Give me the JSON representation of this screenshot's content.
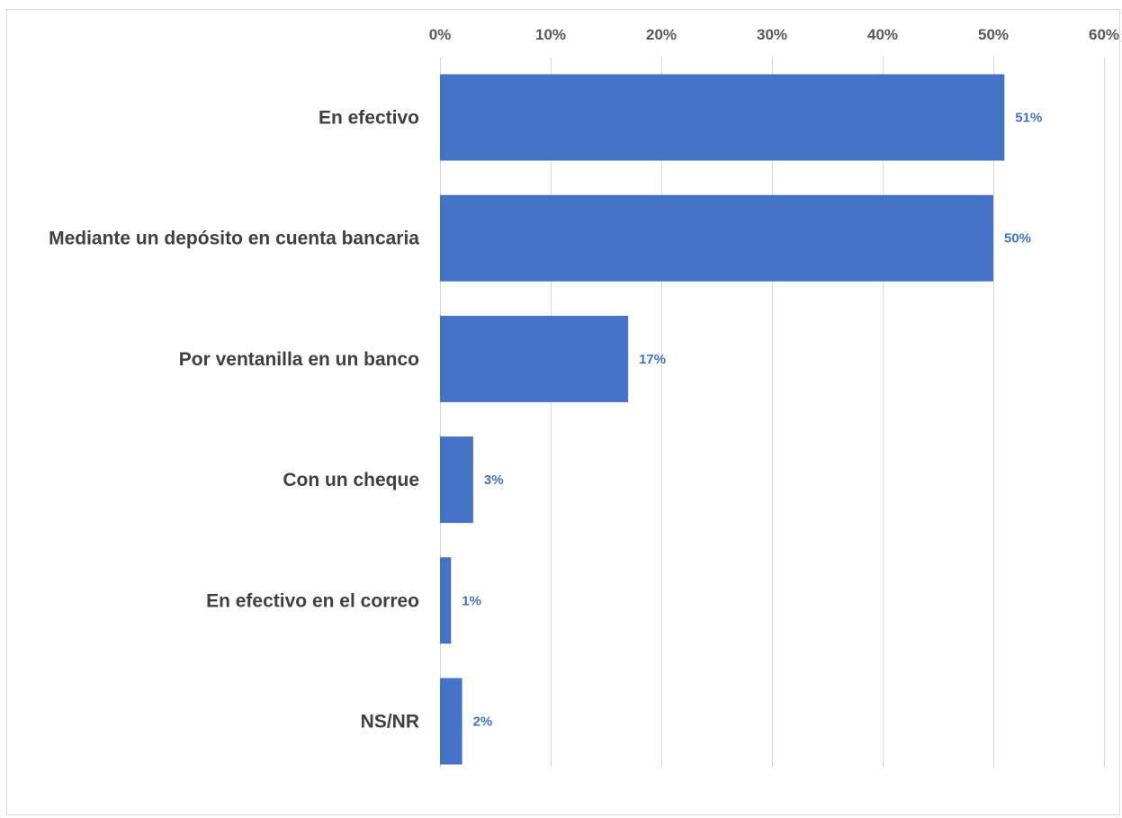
{
  "chart_data": {
    "type": "bar",
    "orientation": "horizontal",
    "categories": [
      "En efectivo",
      "Mediante un depósito en cuenta bancaria",
      "Por ventanilla en un banco",
      "Con un cheque",
      "En efectivo en el correo",
      "NS/NR"
    ],
    "values": [
      51,
      50,
      17,
      3,
      1,
      2
    ],
    "data_labels": [
      "51%",
      "50%",
      "17%",
      "3%",
      "1%",
      "2%"
    ],
    "value_axis": {
      "min": 0,
      "max": 60,
      "step": 10,
      "position": "top",
      "tick_labels": [
        "0%",
        "10%",
        "20%",
        "30%",
        "40%",
        "50%",
        "60%"
      ]
    },
    "grid": true,
    "legend": "none",
    "colors": {
      "bar": "#4472c4",
      "data_label": "#4472c4",
      "gridline": "#d9d9d9",
      "tick_label": "#595959",
      "category_label": "#404040"
    }
  }
}
